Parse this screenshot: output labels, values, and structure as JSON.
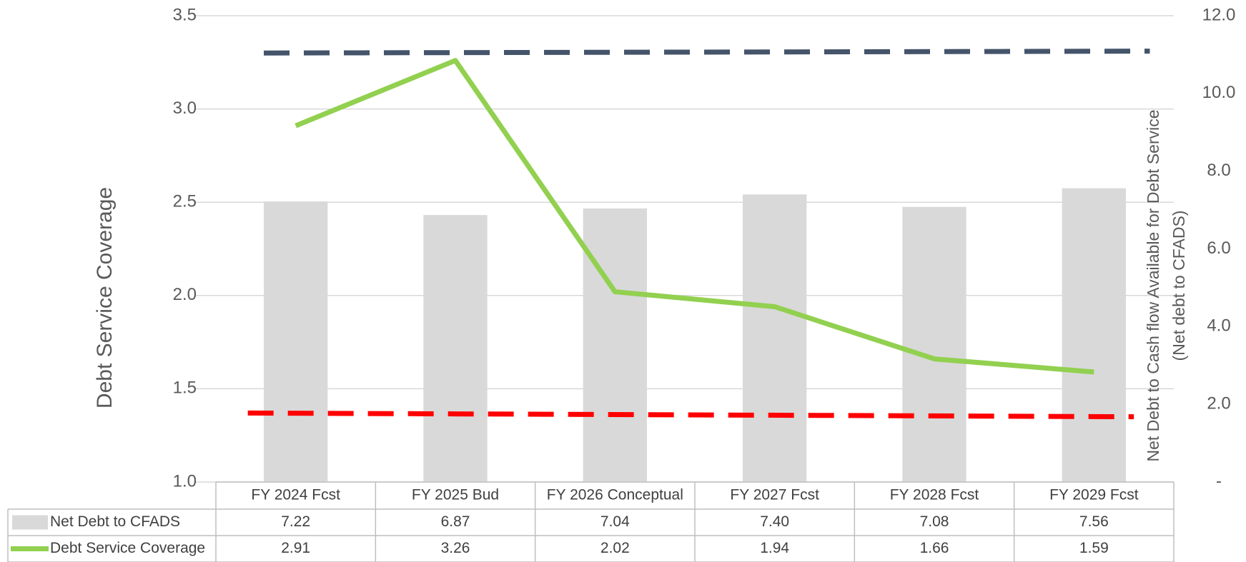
{
  "chart_data": {
    "type": "combo",
    "y_label": "Debt Service Coverage",
    "y2_label": [
      "Net Debt to Cash flow Available for Debt Service",
      "(Net debt to CFADS)"
    ],
    "categories": [
      "FY 2024 Fcst",
      "FY 2025 Bud",
      "FY 2026 Conceptual",
      "FY 2027 Fcst",
      "FY 2028 Fcst",
      "FY 2029 Fcst"
    ],
    "series": [
      {
        "name": "Net Debt to CFADS",
        "type": "bar",
        "axis": "y2",
        "color": "#d9d9d9",
        "values": [
          7.22,
          6.87,
          7.04,
          7.4,
          7.08,
          7.56
        ],
        "value_labels": [
          "7.22",
          "6.87",
          "7.04",
          "7.40",
          "7.08",
          "7.56"
        ]
      },
      {
        "name": "Debt Service Coverage",
        "type": "line",
        "color": "#92d050",
        "values": [
          2.91,
          3.26,
          2.02,
          1.94,
          1.66,
          1.59
        ],
        "value_labels": [
          "2.91",
          "3.26",
          "2.02",
          "1.94",
          "1.66",
          "1.59"
        ]
      }
    ],
    "reference_lines": [
      {
        "color": "#44546a",
        "values": [
          3.3,
          3.31
        ]
      },
      {
        "color": "#ff0000",
        "values": [
          1.37,
          1.35
        ]
      }
    ],
    "ylim": [
      1,
      3.5
    ],
    "yticks": [
      {
        "value": 1,
        "label": "1.0"
      },
      1.5,
      {
        "value": 2,
        "label": "2.0"
      },
      2.5,
      {
        "value": 3,
        "label": "3.0"
      },
      3.5
    ],
    "y2lim": [
      0,
      12
    ],
    "y2ticks": [
      {
        "value": 0,
        "label": "-"
      },
      {
        "value": 2,
        "label": "2.0"
      },
      {
        "value": 4,
        "label": "4.0"
      },
      {
        "value": 6,
        "label": "6.0"
      },
      {
        "value": 8,
        "label": "8.0"
      },
      {
        "value": 10,
        "label": "10.0"
      },
      {
        "value": 12,
        "label": "12.0"
      }
    ],
    "grid": true
  }
}
